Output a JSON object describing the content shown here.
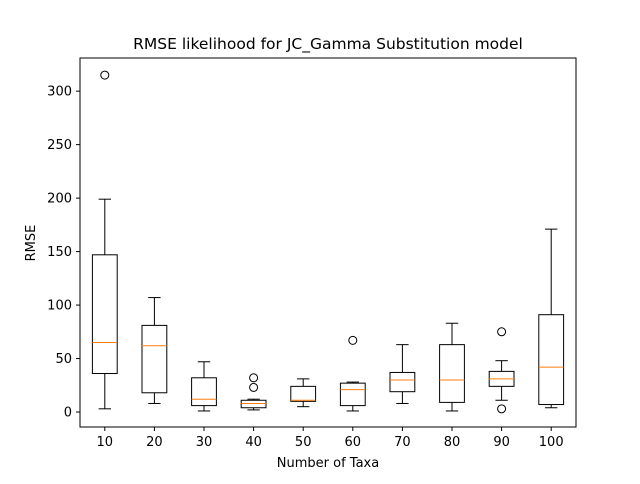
{
  "chart_data": {
    "type": "box",
    "title": "RMSE likelihood for JC_Gamma Substitution model",
    "xlabel": "Number of Taxa",
    "ylabel": "RMSE",
    "ylim": [
      -14,
      331
    ],
    "yticks": [
      0,
      50,
      100,
      150,
      200,
      250,
      300
    ],
    "grid": false,
    "median_color": "#ff7f0e",
    "box_color": "#000000",
    "categories": [
      "10",
      "20",
      "30",
      "40",
      "50",
      "60",
      "70",
      "80",
      "90",
      "100"
    ],
    "boxes": [
      {
        "label": "10",
        "whisker_low": 3,
        "q1": 36,
        "median": 65,
        "q3": 147,
        "whisker_high": 199,
        "fliers": [
          315
        ]
      },
      {
        "label": "20",
        "whisker_low": 8,
        "q1": 18,
        "median": 62,
        "q3": 81,
        "whisker_high": 107,
        "fliers": []
      },
      {
        "label": "30",
        "whisker_low": 1,
        "q1": 6,
        "median": 12,
        "q3": 32,
        "whisker_high": 47,
        "fliers": []
      },
      {
        "label": "40",
        "whisker_low": 2,
        "q1": 4,
        "median": 8,
        "q3": 11,
        "whisker_high": 12,
        "fliers": [
          23,
          32
        ]
      },
      {
        "label": "50",
        "whisker_low": 5,
        "q1": 10,
        "median": 11,
        "q3": 24,
        "whisker_high": 31,
        "fliers": []
      },
      {
        "label": "60",
        "whisker_low": 1,
        "q1": 6,
        "median": 21,
        "q3": 27,
        "whisker_high": 28,
        "fliers": [
          67
        ]
      },
      {
        "label": "70",
        "whisker_low": 8,
        "q1": 19,
        "median": 30,
        "q3": 37,
        "whisker_high": 63,
        "fliers": []
      },
      {
        "label": "80",
        "whisker_low": 1,
        "q1": 9,
        "median": 30,
        "q3": 63,
        "whisker_high": 83,
        "fliers": []
      },
      {
        "label": "90",
        "whisker_low": 11,
        "q1": 24,
        "median": 31,
        "q3": 38,
        "whisker_high": 48,
        "fliers": [
          3,
          75
        ]
      },
      {
        "label": "100",
        "whisker_low": 4,
        "q1": 7,
        "median": 42,
        "q3": 91,
        "whisker_high": 171,
        "fliers": []
      }
    ]
  }
}
